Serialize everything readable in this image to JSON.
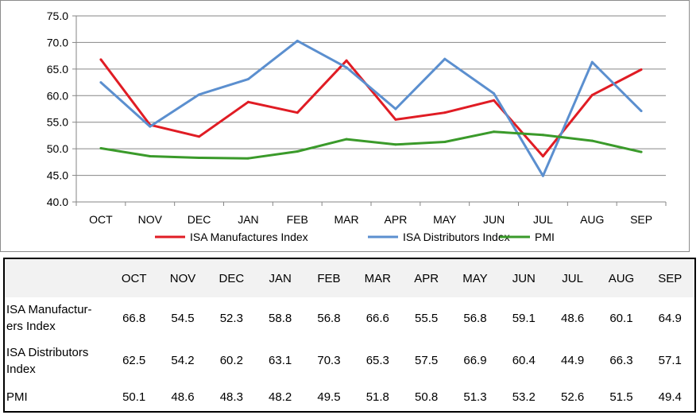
{
  "chart_data": {
    "type": "line",
    "categories": [
      "OCT",
      "NOV",
      "DEC",
      "JAN",
      "FEB",
      "MAR",
      "APR",
      "MAY",
      "JUN",
      "JUL",
      "AUG",
      "SEP"
    ],
    "ylim": [
      40.0,
      75.0
    ],
    "yticks": [
      "40.0",
      "45.0",
      "50.0",
      "55.0",
      "60.0",
      "65.0",
      "70.0",
      "75.0"
    ],
    "grid": "horizontal",
    "legend_position": "bottom",
    "series": [
      {
        "name": "ISA Manufactures Index",
        "color": "#e01c24",
        "values": [
          66.8,
          54.5,
          52.3,
          58.8,
          56.8,
          66.6,
          55.5,
          56.8,
          59.1,
          48.6,
          60.1,
          64.9
        ]
      },
      {
        "name": "ISA Distributors Index",
        "color": "#5b8fcf",
        "values": [
          62.5,
          54.2,
          60.2,
          63.1,
          70.3,
          65.3,
          57.5,
          66.9,
          60.4,
          44.9,
          66.3,
          57.1
        ]
      },
      {
        "name": "PMI",
        "color": "#3a9a2a",
        "values": [
          50.1,
          48.6,
          48.3,
          48.2,
          49.5,
          51.8,
          50.8,
          51.3,
          53.2,
          52.6,
          51.5,
          49.4
        ]
      }
    ]
  },
  "table": {
    "headers": [
      "OCT",
      "NOV",
      "DEC",
      "JAN",
      "FEB",
      "MAR",
      "APR",
      "MAY",
      "JUN",
      "JUL",
      "AUG",
      "SEP"
    ],
    "rows": [
      {
        "label_line1": "ISA Manufactur-",
        "label_line2": "ers Index",
        "values": [
          "66.8",
          "54.5",
          "52.3",
          "58.8",
          "56.8",
          "66.6",
          "55.5",
          "56.8",
          "59.1",
          "48.6",
          "60.1",
          "64.9"
        ]
      },
      {
        "label_line1": "ISA Distributors",
        "label_line2": "Index",
        "values": [
          "62.5",
          "54.2",
          "60.2",
          "63.1",
          "70.3",
          "65.3",
          "57.5",
          "66.9",
          "60.4",
          "44.9",
          "66.3",
          "57.1"
        ]
      },
      {
        "label_line1": "PMI",
        "label_line2": "",
        "values": [
          "50.1",
          "48.6",
          "48.3",
          "48.2",
          "49.5",
          "51.8",
          "50.8",
          "51.3",
          "53.2",
          "52.6",
          "51.5",
          "49.4"
        ]
      }
    ]
  }
}
